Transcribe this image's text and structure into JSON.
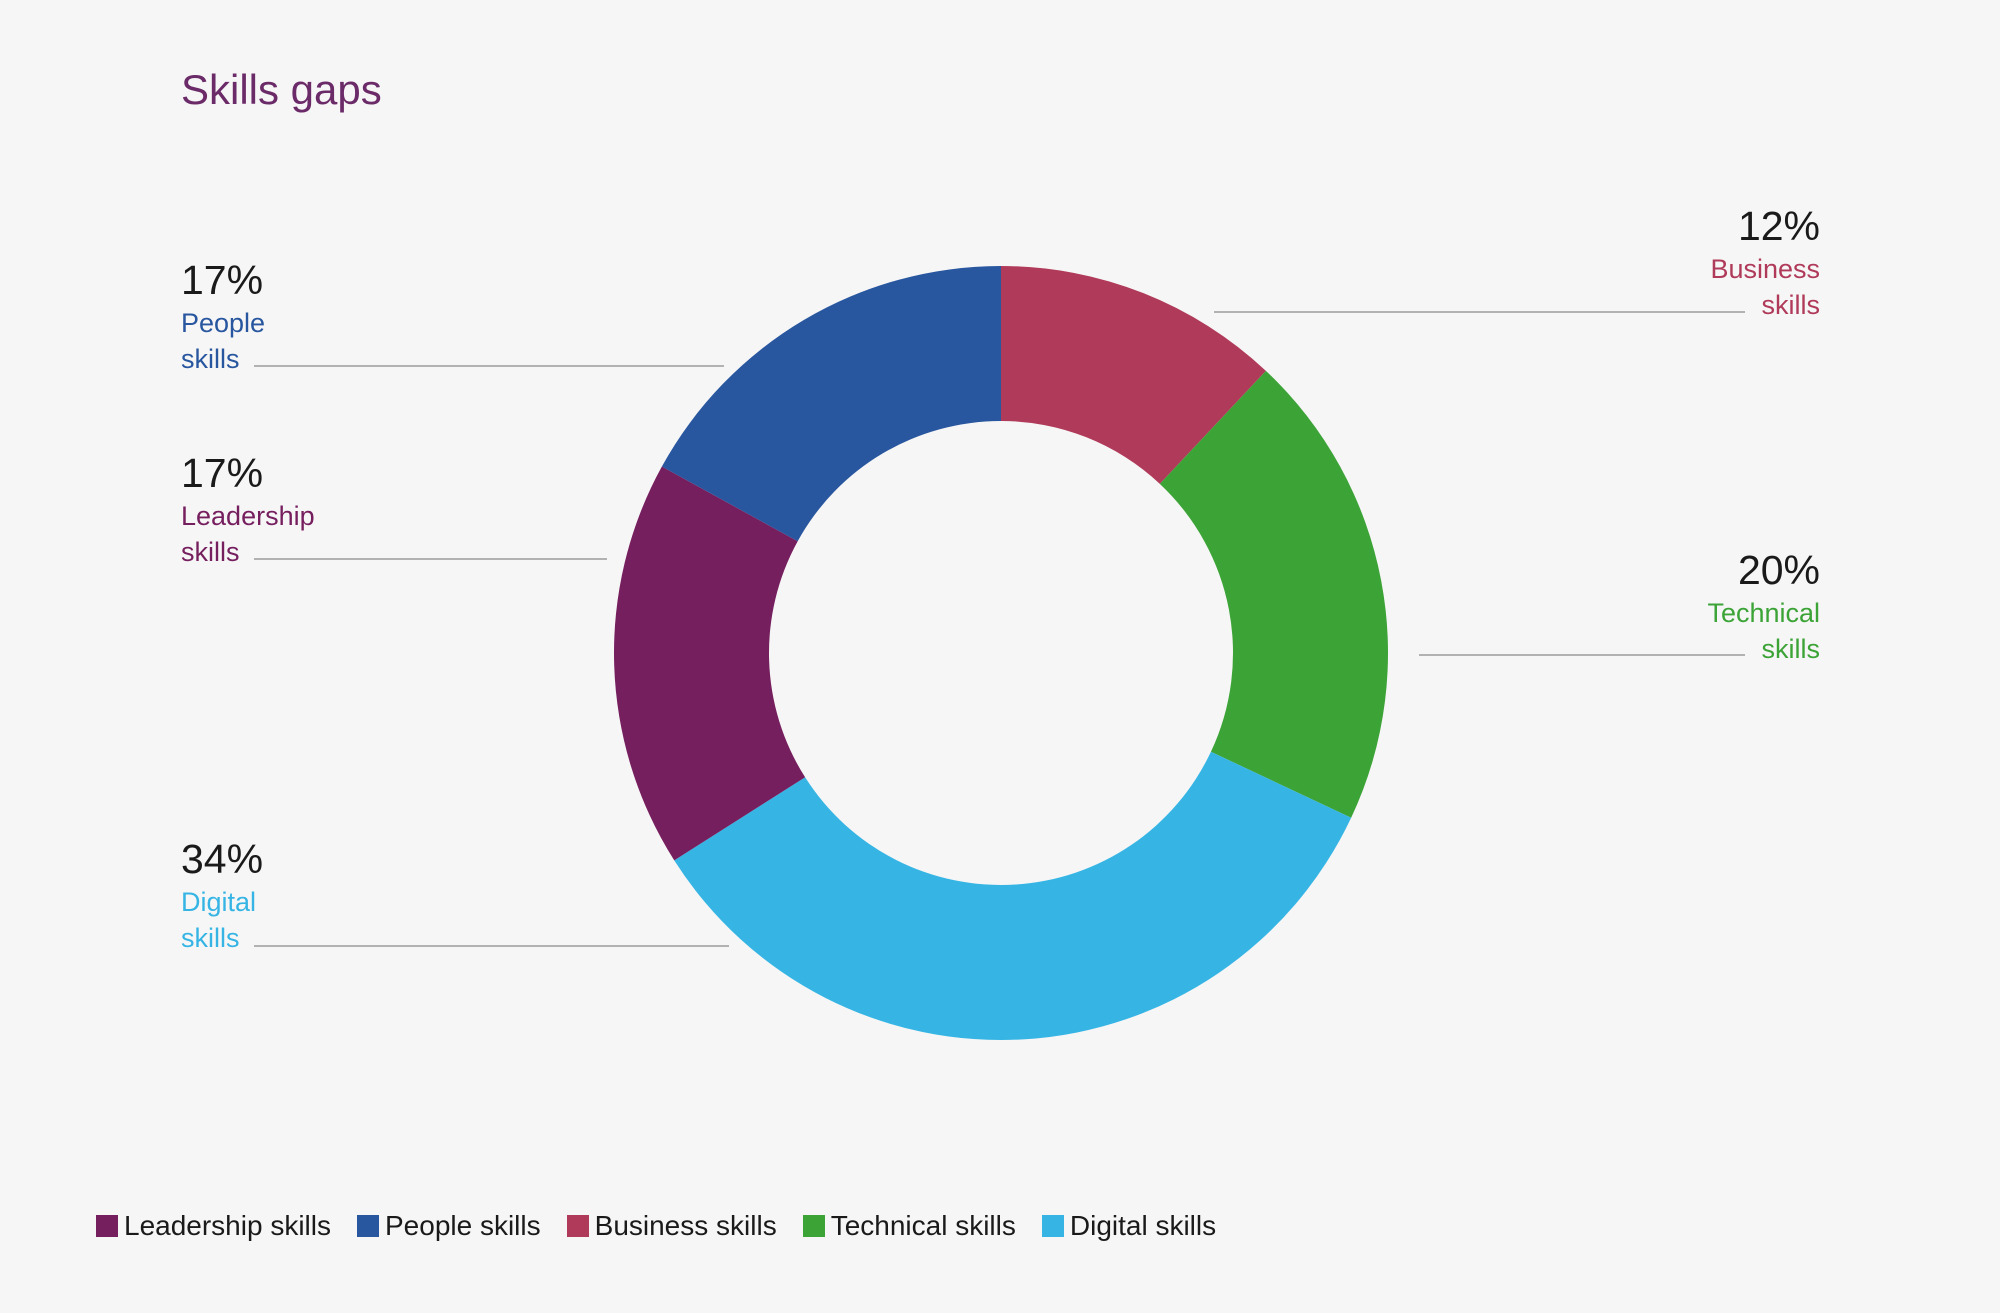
{
  "chart_data": {
    "type": "pie",
    "title": "Skills gaps",
    "donut": true,
    "legend_position": "bottom-left",
    "slices": [
      {
        "name": "Business skills",
        "value": 12,
        "pct_label": "12%",
        "label_line1": "Business",
        "label_line2": "skills",
        "color": "#b03a59"
      },
      {
        "name": "Technical skills",
        "value": 20,
        "pct_label": "20%",
        "label_line1": "Technical",
        "label_line2": "skills",
        "color": "#3ca337"
      },
      {
        "name": "Digital skills",
        "value": 34,
        "pct_label": "34%",
        "label_line1": "Digital",
        "label_line2": "skills",
        "color": "#36b5e5"
      },
      {
        "name": "Leadership skills",
        "value": 17,
        "pct_label": "17%",
        "label_line1": "Leadership",
        "label_line2": "skills",
        "color": "#761f5f"
      },
      {
        "name": "People skills",
        "value": 17,
        "pct_label": "17%",
        "label_line1": "People",
        "label_line2": "skills",
        "color": "#28569f"
      }
    ],
    "legend": [
      {
        "label": "Leadership skills",
        "color": "#761f5f"
      },
      {
        "label": "People skills",
        "color": "#28569f"
      },
      {
        "label": "Business skills",
        "color": "#b03a59"
      },
      {
        "label": "Technical skills",
        "color": "#3ca337"
      },
      {
        "label": "Digital skills",
        "color": "#36b5e5"
      }
    ]
  }
}
